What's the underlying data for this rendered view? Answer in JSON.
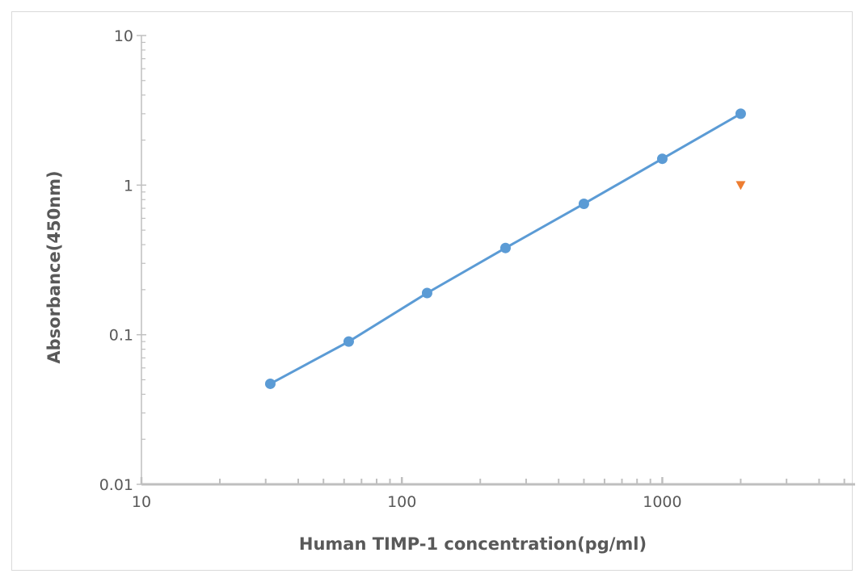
{
  "chart_data": {
    "type": "line",
    "xlabel": "Human TIMP-1  concentration(pg/ml)",
    "ylabel": "Absorbance(450nm)",
    "x_scale": "log",
    "y_scale": "log",
    "xlim": [
      10,
      5500
    ],
    "ylim": [
      0.01,
      10
    ],
    "x_ticks": [
      "10",
      "100",
      "1000"
    ],
    "y_ticks": [
      "10",
      "1",
      "0.1",
      "0.01"
    ],
    "grid": false,
    "series": [
      {
        "color": "#5b9bd5",
        "marker": "circle",
        "line": true,
        "x": [
          31.25,
          62.5,
          125,
          250,
          500,
          1000,
          2000
        ],
        "y": [
          0.047,
          0.09,
          0.19,
          0.38,
          0.75,
          1.5,
          3.0
        ]
      },
      {
        "color": "#ed7d31",
        "marker": "triangle-down",
        "line": false,
        "x": [
          2000
        ],
        "y": [
          1.0
        ]
      }
    ]
  }
}
